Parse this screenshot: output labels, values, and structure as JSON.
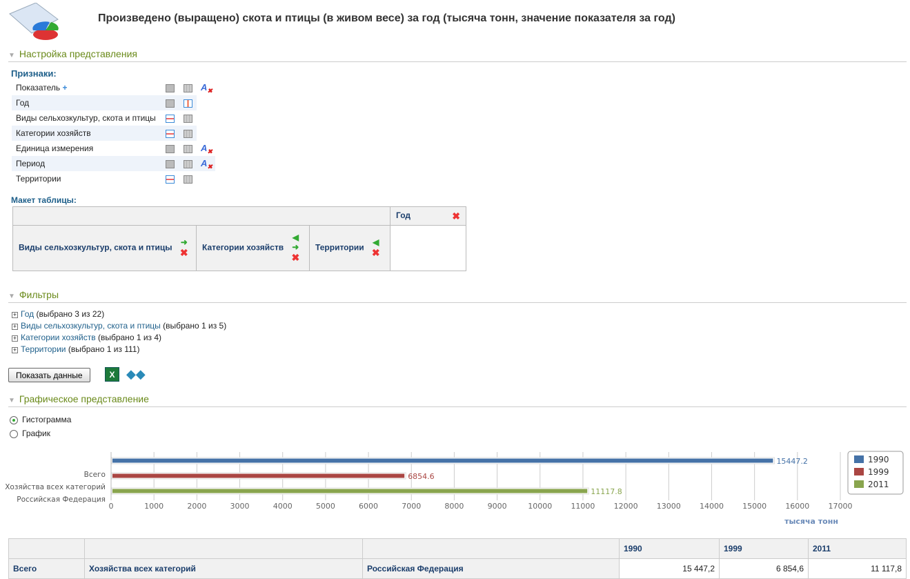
{
  "title": "Произведено (выращено) скота и птицы (в живом весе) за год (тысяча тонн, значение показателя за год)",
  "settings": {
    "header": "Настройка представления",
    "attributes_label": "Признаки:",
    "attributes": [
      {
        "label": "Показатель",
        "plus": "+"
      },
      {
        "label": "Год"
      },
      {
        "label": "Виды сельхозкультур, скота и птицы"
      },
      {
        "label": "Категории хозяйств"
      },
      {
        "label": "Единица измерения"
      },
      {
        "label": "Период"
      },
      {
        "label": "Территории"
      }
    ],
    "layout_label": "Макет таблицы:",
    "layout_col": "Год",
    "layout_rows": [
      "Виды сельхозкультур, скота и птицы",
      "Категории хозяйств",
      "Территории"
    ]
  },
  "filters": {
    "header": "Фильтры",
    "items": [
      {
        "name": "Год",
        "info": "(выбрано 3 из 22)"
      },
      {
        "name": "Виды сельхозкультур, скота и птицы",
        "info": "(выбрано 1 из 5)"
      },
      {
        "name": "Категории хозяйств",
        "info": "(выбрано 1 из 4)"
      },
      {
        "name": "Территории",
        "info": "(выбрано 1 из 111)"
      }
    ]
  },
  "show_button": "Показать данные",
  "graph": {
    "header": "Графическое представление",
    "options": [
      "Гистограмма",
      "График"
    ],
    "selected": "Гистограмма"
  },
  "chart_data": {
    "type": "bar",
    "orientation": "horizontal",
    "categories": [
      "Всего",
      "Хозяйства всех категорий",
      "Российская Федерация"
    ],
    "series": [
      {
        "name": "1990",
        "value": 15447.2,
        "label": "15447.2",
        "color": "#4572a7"
      },
      {
        "name": "1999",
        "value": 6854.6,
        "label": "6854.6",
        "color": "#aa4643"
      },
      {
        "name": "2011",
        "value": 11117.8,
        "label": "11117.8",
        "color": "#89a54e"
      }
    ],
    "xlim": [
      0,
      17000
    ],
    "xticks": [
      "0",
      "1000",
      "2000",
      "3000",
      "4000",
      "5000",
      "6000",
      "7000",
      "8000",
      "9000",
      "10000",
      "11000",
      "12000",
      "13000",
      "14000",
      "15000",
      "16000",
      "17000"
    ],
    "xlabel": "тысяча тонн",
    "legend": "right",
    "grid": true
  },
  "table": {
    "years": [
      "1990",
      "1999",
      "2011"
    ],
    "row": [
      "Всего",
      "Хозяйства всех категорий",
      "Российская Федерация"
    ],
    "values": [
      "15 447,2",
      "6 854,6",
      "11 117,8"
    ]
  }
}
